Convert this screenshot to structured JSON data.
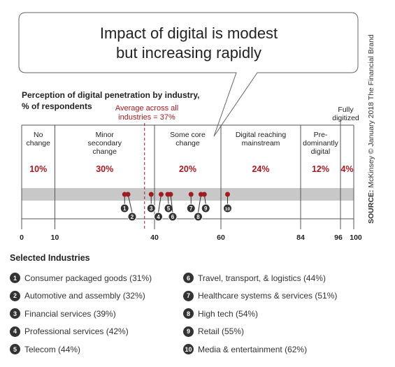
{
  "callout": {
    "line1": "Impact of digital is modest",
    "line2": "but increasing rapidly"
  },
  "chart_data": {
    "type": "scatter",
    "title": "Perception of digital penetration by industry,",
    "subtitle": "% of respondents",
    "xlim": [
      0,
      100
    ],
    "x_ticks": [
      0,
      10,
      40,
      60,
      84,
      96,
      100
    ],
    "average": {
      "value": 37,
      "label_line1": "Average across all",
      "label_line2": "industries = 37%"
    },
    "segments": [
      {
        "label_lines": [
          "No",
          "change"
        ],
        "pct": "10%",
        "start": 0,
        "end": 10
      },
      {
        "label_lines": [
          "Minor",
          "secondary",
          "change"
        ],
        "pct": "30%",
        "start": 10,
        "end": 40
      },
      {
        "label_lines": [
          "Some core",
          "change"
        ],
        "pct": "20%",
        "start": 40,
        "end": 60
      },
      {
        "label_lines": [
          "Digital reaching",
          "mainstream"
        ],
        "pct": "24%",
        "start": 60,
        "end": 84
      },
      {
        "label_lines": [
          "Pre-",
          "dominantly",
          "digital"
        ],
        "pct": "12%",
        "start": 84,
        "end": 96
      },
      {
        "label_lines": [
          "Fully",
          "digitized"
        ],
        "pct": "4%",
        "start": 96,
        "end": 100
      }
    ],
    "points": [
      {
        "n": "1",
        "x": 31
      },
      {
        "n": "2",
        "x": 32
      },
      {
        "n": "3",
        "x": 39
      },
      {
        "n": "4",
        "x": 42
      },
      {
        "n": "5",
        "x": 44
      },
      {
        "n": "6",
        "x": 44
      },
      {
        "n": "7",
        "x": 51
      },
      {
        "n": "8",
        "x": 54
      },
      {
        "n": "9",
        "x": 55
      },
      {
        "n": "10",
        "x": 62
      }
    ]
  },
  "legend": {
    "title": "Selected Industries",
    "left": [
      {
        "n": "1",
        "label": "Consumer packaged goods  (31%)"
      },
      {
        "n": "2",
        "label": "Automotive and assembly  (32%)"
      },
      {
        "n": "3",
        "label": "Financial services  (39%)"
      },
      {
        "n": "4",
        "label": "Professional services  (42%)"
      },
      {
        "n": "5",
        "label": "Telecom  (44%)"
      }
    ],
    "right": [
      {
        "n": "6",
        "label": "Travel, transport, & logistics  (44%)"
      },
      {
        "n": "7",
        "label": "Healthcare systems & services  (51%)"
      },
      {
        "n": "8",
        "label": "High tech  (54%)"
      },
      {
        "n": "9",
        "label": "Retail  (55%)"
      },
      {
        "n": "10",
        "label": "Media & entertainment  (62%)"
      }
    ]
  },
  "source": {
    "prefix": "SOURCE:",
    "text": " McKinsey © January 2018 The Financial Brand"
  },
  "colors": {
    "accent": "#a01c22",
    "dark": "#333333",
    "band": "#c8c8c8",
    "grid": "#555555"
  }
}
